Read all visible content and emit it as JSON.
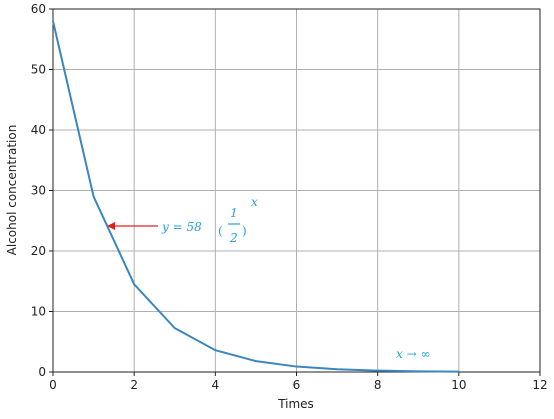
{
  "chart_data": {
    "type": "line",
    "x_label": "Times",
    "y_label": "Alcohol concentration",
    "x": [
      0,
      1,
      2,
      3,
      4,
      5,
      6,
      7,
      8,
      9,
      10
    ],
    "series": [
      {
        "color": "#3a86bf",
        "values": [
          58,
          29,
          14.5,
          7.25,
          3.6,
          1.8,
          0.9,
          0.45,
          0.23,
          0.11,
          0.06
        ]
      }
    ],
    "xlim": [
      0,
      12
    ],
    "xticks": [
      0,
      2,
      4,
      6,
      8,
      10,
      12
    ],
    "ylim": [
      0,
      60
    ],
    "yticks": [
      0,
      10,
      20,
      30,
      40,
      50,
      60
    ],
    "grid": true,
    "annotations": {
      "formula": {
        "lhs": "y = 58",
        "numerator": "1",
        "denominator": "2",
        "exponent": "x"
      },
      "limit": "x → ∞",
      "color": "#2aa0d4",
      "arrow_color": "#e02020"
    }
  }
}
